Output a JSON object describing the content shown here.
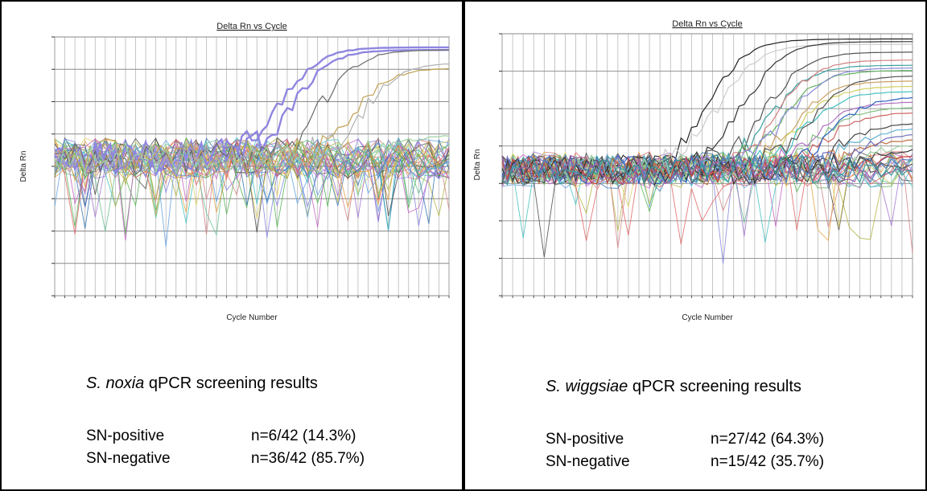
{
  "charts": [
    {
      "id": "left",
      "title": "Delta Rn vs Cycle",
      "xlabel": "Cycle Number",
      "ylabel": "Delta Rn",
      "cycles": 40,
      "threshold_note": "",
      "caption": {
        "species": "S. noxia",
        "rest": " qPCR screening results"
      },
      "stats": [
        {
          "label": "SN-positive",
          "value": "n=6/42 (14.3%)"
        },
        {
          "label": "SN-negative",
          "value": "n=36/42 (85.7%)"
        }
      ]
    },
    {
      "id": "right",
      "title": "Delta Rn vs Cycle",
      "xlabel": "Cycle Number",
      "ylabel": "Delta Rn",
      "cycles": 40,
      "caption": {
        "species": "S. wiggsiae",
        "rest": " qPCR screening results"
      },
      "stats": [
        {
          "label": "SN-positive",
          "value": "n=27/42 (64.3%)"
        },
        {
          "label": "SN-negative",
          "value": "n=15/42 (35.7%)"
        }
      ]
    }
  ],
  "chart_data": [
    {
      "type": "line",
      "title": "Delta Rn vs Cycle",
      "xlabel": "Cycle Number",
      "ylabel": "Delta Rn",
      "xlim": [
        1,
        40
      ],
      "grid": true,
      "amplification_curves": [
        {
          "color": "#8f86e0",
          "ct": 23.5,
          "plateau": 0.96
        },
        {
          "color": "#8f86e0",
          "ct": 24.5,
          "plateau": 0.95
        },
        {
          "color": "#6a6a6a",
          "ct": 27.5,
          "plateau": 0.95
        },
        {
          "color": "#c0a050",
          "ct": 30.5,
          "plateau": 0.88
        },
        {
          "color": "#b0b0b0",
          "ct": 31.5,
          "plateau": 0.9
        },
        {
          "color": "#9bd0a0",
          "ct": 33.5,
          "plateau": 0.62
        }
      ],
      "noise_traces": 36
    },
    {
      "type": "line",
      "title": "Delta Rn vs Cycle",
      "xlabel": "Cycle Number",
      "ylabel": "Delta Rn",
      "xlim": [
        1,
        40
      ],
      "grid": true,
      "amplification_curves": [
        {
          "color": "#222222",
          "ct": 20.5,
          "plateau": 0.98
        },
        {
          "color": "#cccccc",
          "ct": 21.5,
          "plateau": 0.96
        },
        {
          "color": "#333333",
          "ct": 24.0,
          "plateau": 0.97
        },
        {
          "color": "#555555",
          "ct": 26.0,
          "plateau": 0.93
        },
        {
          "color": "#3aa0a0",
          "ct": 26.5,
          "plateau": 0.88
        },
        {
          "color": "#d08080",
          "ct": 27.0,
          "plateau": 0.9
        },
        {
          "color": "#60b060",
          "ct": 27.5,
          "plateau": 0.86
        },
        {
          "color": "#8a8ad8",
          "ct": 28.0,
          "plateau": 0.87
        },
        {
          "color": "#c9a060",
          "ct": 28.5,
          "plateau": 0.82
        },
        {
          "color": "#d0d060",
          "ct": 29.0,
          "plateau": 0.8
        },
        {
          "color": "#40c0c0",
          "ct": 29.5,
          "plateau": 0.78
        },
        {
          "color": "#555555",
          "ct": 30.0,
          "plateau": 0.84
        },
        {
          "color": "#b070c0",
          "ct": 30.5,
          "plateau": 0.74
        },
        {
          "color": "#80c080",
          "ct": 31.0,
          "plateau": 0.72
        },
        {
          "color": "#d06060",
          "ct": 31.5,
          "plateau": 0.7
        },
        {
          "color": "#3060c0",
          "ct": 32.0,
          "plateau": 0.76
        },
        {
          "color": "#444444",
          "ct": 33.0,
          "plateau": 0.66
        },
        {
          "color": "#60b0d0",
          "ct": 33.5,
          "plateau": 0.64
        },
        {
          "color": "#c07040",
          "ct": 34.0,
          "plateau": 0.6
        },
        {
          "color": "#7070c0",
          "ct": 34.5,
          "plateau": 0.62
        },
        {
          "color": "#333333",
          "ct": 35.0,
          "plateau": 0.56
        },
        {
          "color": "#a0d0a0",
          "ct": 35.5,
          "plateau": 0.58
        },
        {
          "color": "#c04040",
          "ct": 36.0,
          "plateau": 0.54
        },
        {
          "color": "#5080c0",
          "ct": 36.5,
          "plateau": 0.52
        },
        {
          "color": "#555555",
          "ct": 37.0,
          "plateau": 0.5
        },
        {
          "color": "#a060a0",
          "ct": 37.5,
          "plateau": 0.48
        },
        {
          "color": "#3a9a9a",
          "ct": 38.0,
          "plateau": 0.46
        }
      ],
      "noise_traces": 15
    }
  ]
}
